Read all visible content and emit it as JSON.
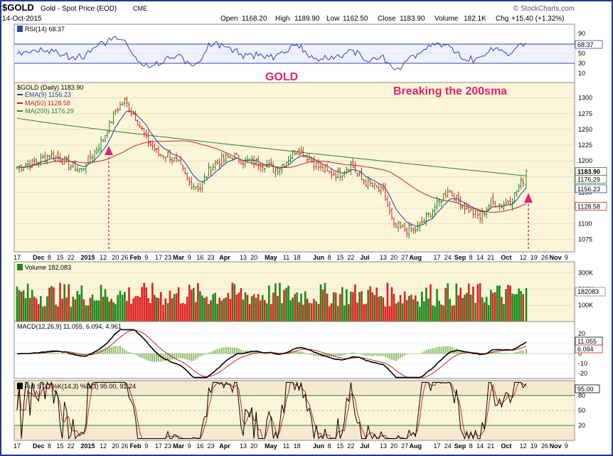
{
  "header": {
    "symbol": "$GOLD",
    "name": "Gold - Spot Price (EOD)",
    "exchange": "CME",
    "date": "14-Oct-2015",
    "watermark": "© StockCharts.com",
    "open_label": "Open",
    "open": "1168.20",
    "high_label": "High",
    "high": "1189.90",
    "low_label": "Low",
    "low": "1162.50",
    "close_label": "Close",
    "close": "1183.90",
    "volume_label": "Volume",
    "volume": "182.1K",
    "chg_label": "Chg",
    "chg": "+15.40 (+1.32%)"
  },
  "annotations": {
    "title": "GOLD",
    "note": "Breaking the 200sma"
  },
  "colors": {
    "up": "#1a8a1a",
    "down": "#dd2222",
    "ema": "#1f3fa6",
    "ma50": "#cc2222",
    "ma200": "#2e7d2e",
    "annotation": "#e8216e",
    "panel_bg": "#fbf6da",
    "rsi_line": "#3344aa",
    "macd": "#000000",
    "signal": "#cc2222",
    "frame": "#233a8f"
  },
  "chart_data": [
    {
      "type": "line",
      "panel": "rsi",
      "label": "RSI(14) 68.37",
      "current": "68.37",
      "y_ticks": [
        "90",
        "70",
        "50",
        "30",
        "10"
      ],
      "ylim": [
        0,
        100
      ]
    },
    {
      "type": "candlestick",
      "panel": "price",
      "label": "$GOLD (Daily) 1183.90",
      "legend": [
        {
          "name": "EMA(9) 1156.23",
          "color_key": "ema"
        },
        {
          "name": "MA(50) 1128.58",
          "color_key": "ma50"
        },
        {
          "name": "MA(200) 1176.29",
          "color_key": "ma200"
        }
      ],
      "ylim": [
        1060,
        1320
      ],
      "y_ticks": [
        "1300",
        "1275",
        "1250",
        "1225",
        "1200",
        "1175",
        "1150",
        "1125",
        "1100",
        "1075"
      ],
      "price_tags": [
        {
          "text": "1183.90",
          "value": 1183.9,
          "style": "bold"
        },
        {
          "text": "1176.29",
          "value": 1176.29,
          "style": "normal"
        },
        {
          "text": "1156.23",
          "value": 1156.23,
          "style": "normal"
        },
        {
          "text": "1128.58",
          "value": 1128.58,
          "style": "normal"
        }
      ],
      "close_trend": [
        {
          "date": "2014-11-17",
          "close": 1190
        },
        {
          "date": "2014-11-24",
          "close": 1195
        },
        {
          "date": "2014-12-01",
          "close": 1200
        },
        {
          "date": "2014-12-08",
          "close": 1210
        },
        {
          "date": "2014-12-15",
          "close": 1205
        },
        {
          "date": "2014-12-22",
          "close": 1192
        },
        {
          "date": "2014-12-29",
          "close": 1186
        },
        {
          "date": "2015-01-05",
          "close": 1210
        },
        {
          "date": "2015-01-12",
          "close": 1235
        },
        {
          "date": "2015-01-20",
          "close": 1280
        },
        {
          "date": "2015-01-26",
          "close": 1295
        },
        {
          "date": "2015-02-02",
          "close": 1270
        },
        {
          "date": "2015-02-09",
          "close": 1235
        },
        {
          "date": "2015-02-17",
          "close": 1210
        },
        {
          "date": "2015-02-23",
          "close": 1210
        },
        {
          "date": "2015-03-02",
          "close": 1195
        },
        {
          "date": "2015-03-09",
          "close": 1165
        },
        {
          "date": "2015-03-16",
          "close": 1158
        },
        {
          "date": "2015-03-23",
          "close": 1190
        },
        {
          "date": "2015-03-30",
          "close": 1202
        },
        {
          "date": "2015-04-06",
          "close": 1208
        },
        {
          "date": "2015-04-13",
          "close": 1200
        },
        {
          "date": "2015-04-20",
          "close": 1198
        },
        {
          "date": "2015-04-27",
          "close": 1195
        },
        {
          "date": "2015-05-04",
          "close": 1185
        },
        {
          "date": "2015-05-11",
          "close": 1200
        },
        {
          "date": "2015-05-18",
          "close": 1220
        },
        {
          "date": "2015-05-26",
          "close": 1205
        },
        {
          "date": "2015-06-01",
          "close": 1190
        },
        {
          "date": "2015-06-08",
          "close": 1180
        },
        {
          "date": "2015-06-15",
          "close": 1180
        },
        {
          "date": "2015-06-22",
          "close": 1195
        },
        {
          "date": "2015-06-29",
          "close": 1170
        },
        {
          "date": "2015-07-06",
          "close": 1160
        },
        {
          "date": "2015-07-13",
          "close": 1150
        },
        {
          "date": "2015-07-20",
          "close": 1095
        },
        {
          "date": "2015-07-27",
          "close": 1092
        },
        {
          "date": "2015-08-03",
          "close": 1090
        },
        {
          "date": "2015-08-10",
          "close": 1110
        },
        {
          "date": "2015-08-17",
          "close": 1130
        },
        {
          "date": "2015-08-24",
          "close": 1155
        },
        {
          "date": "2015-08-31",
          "close": 1135
        },
        {
          "date": "2015-09-08",
          "close": 1120
        },
        {
          "date": "2015-09-14",
          "close": 1110
        },
        {
          "date": "2015-09-21",
          "close": 1135
        },
        {
          "date": "2015-09-28",
          "close": 1130
        },
        {
          "date": "2015-10-05",
          "close": 1140
        },
        {
          "date": "2015-10-12",
          "close": 1170
        },
        {
          "date": "2015-10-14",
          "close": 1183.9
        }
      ]
    },
    {
      "type": "bar",
      "panel": "volume",
      "label": "Volume 182,083",
      "current": "182083",
      "y_ticks": [
        "300K",
        "200K",
        "100K"
      ],
      "ylim": [
        0,
        350000
      ]
    },
    {
      "type": "line",
      "panel": "macd",
      "label": "MACD(12,26,9) 11.055, 6.094, 4.961",
      "values": [
        "11.055",
        "6.094",
        "4.961"
      ],
      "y_ticks": [
        "20",
        "10",
        "0",
        "-10",
        "-20"
      ],
      "ylim": [
        -25,
        25
      ]
    },
    {
      "type": "line",
      "panel": "stochastic",
      "label": "Full STO %K(14,3) %D(3) 95.00, 91.24",
      "values": [
        "95.00",
        "91.24"
      ],
      "y_ticks": [
        "80",
        "50",
        "20"
      ],
      "ylim": [
        0,
        100
      ]
    }
  ],
  "xaxis": {
    "labels": [
      {
        "text": "17",
        "date": "2014-11-17",
        "bold": false
      },
      {
        "text": "Dec",
        "date": "2014-12-01",
        "bold": true
      },
      {
        "text": "8",
        "date": "2014-12-08",
        "bold": false
      },
      {
        "text": "15",
        "date": "2014-12-15",
        "bold": false
      },
      {
        "text": "22",
        "date": "2014-12-22",
        "bold": false
      },
      {
        "text": "2015",
        "date": "2015-01-02",
        "bold": true
      },
      {
        "text": "12",
        "date": "2015-01-12",
        "bold": false
      },
      {
        "text": "20",
        "date": "2015-01-20",
        "bold": false
      },
      {
        "text": "26",
        "date": "2015-01-26",
        "bold": false
      },
      {
        "text": "Feb",
        "date": "2015-02-02",
        "bold": true
      },
      {
        "text": "9",
        "date": "2015-02-09",
        "bold": false
      },
      {
        "text": "17",
        "date": "2015-02-17",
        "bold": false
      },
      {
        "text": "23",
        "date": "2015-02-23",
        "bold": false
      },
      {
        "text": "Mar",
        "date": "2015-03-02",
        "bold": true
      },
      {
        "text": "9",
        "date": "2015-03-09",
        "bold": false
      },
      {
        "text": "16",
        "date": "2015-03-16",
        "bold": false
      },
      {
        "text": "23",
        "date": "2015-03-23",
        "bold": false
      },
      {
        "text": "Apr",
        "date": "2015-04-01",
        "bold": true
      },
      {
        "text": "13",
        "date": "2015-04-13",
        "bold": false
      },
      {
        "text": "20",
        "date": "2015-04-20",
        "bold": false
      },
      {
        "text": "May",
        "date": "2015-05-01",
        "bold": true
      },
      {
        "text": "11",
        "date": "2015-05-11",
        "bold": false
      },
      {
        "text": "18",
        "date": "2015-05-18",
        "bold": false
      },
      {
        "text": "Jun",
        "date": "2015-06-01",
        "bold": true
      },
      {
        "text": "8",
        "date": "2015-06-08",
        "bold": false
      },
      {
        "text": "15",
        "date": "2015-06-15",
        "bold": false
      },
      {
        "text": "22",
        "date": "2015-06-22",
        "bold": false
      },
      {
        "text": "Jul",
        "date": "2015-07-01",
        "bold": true
      },
      {
        "text": "13",
        "date": "2015-07-13",
        "bold": false
      },
      {
        "text": "20",
        "date": "2015-07-20",
        "bold": false
      },
      {
        "text": "27",
        "date": "2015-07-27",
        "bold": false
      },
      {
        "text": "Aug",
        "date": "2015-08-03",
        "bold": true
      },
      {
        "text": "17",
        "date": "2015-08-17",
        "bold": false
      },
      {
        "text": "24",
        "date": "2015-08-24",
        "bold": false
      },
      {
        "text": "Sep",
        "date": "2015-09-01",
        "bold": true
      },
      {
        "text": "8",
        "date": "2015-09-08",
        "bold": false
      },
      {
        "text": "14",
        "date": "2015-09-14",
        "bold": false
      },
      {
        "text": "21",
        "date": "2015-09-21",
        "bold": false
      },
      {
        "text": "Oct",
        "date": "2015-10-01",
        "bold": true
      },
      {
        "text": "12",
        "date": "2015-10-12",
        "bold": false
      },
      {
        "text": "19",
        "date": "2015-10-19",
        "bold": false
      },
      {
        "text": "26",
        "date": "2015-10-26",
        "bold": false
      },
      {
        "text": "Nov",
        "date": "2015-11-02",
        "bold": true
      },
      {
        "text": "9",
        "date": "2015-11-09",
        "bold": false
      }
    ]
  }
}
